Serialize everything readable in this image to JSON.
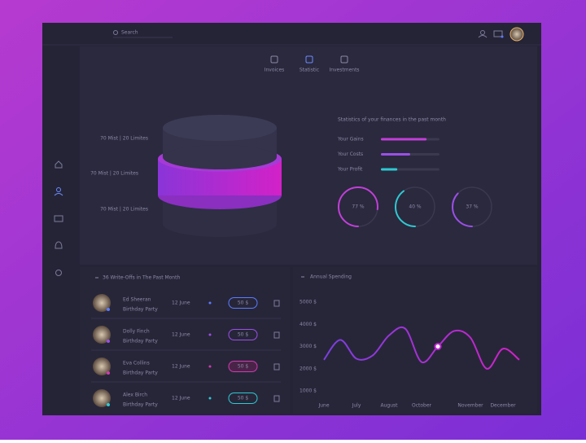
{
  "search": "Search",
  "tabs": [
    "Invoices",
    "Statistic",
    "Investments"
  ],
  "active_tab": 1,
  "cylinder_labels": [
    "70 Mist | 20 Limites",
    "70 Mist | 20 Limites",
    "70 Mist | 20 Limites"
  ],
  "active_label": 1,
  "stats": {
    "title": "Statistics of your finances in the past month",
    "bars": [
      {
        "label": "Your Gains",
        "value": 78,
        "color": "#c23fd8"
      },
      {
        "label": "Your Costs",
        "value": 50,
        "color": "#9b4fe6"
      },
      {
        "label": "Your Profit",
        "value": 28,
        "color": "#2fc9d2"
      }
    ],
    "rings": [
      {
        "value": 77,
        "label": "77 %",
        "color": "#c23fd8"
      },
      {
        "value": 40,
        "label": "40 %",
        "color": "#2fc9d2"
      },
      {
        "value": 37,
        "label": "37 %",
        "color": "#9b4fe6"
      }
    ]
  },
  "writeoffs": {
    "title": "36 Write-Offs in The Past Month",
    "rows": [
      {
        "name": "Ed Sheeran",
        "note": "Birthday Party",
        "date": "12 June",
        "amount": "50 $",
        "color": "#5b7cff"
      },
      {
        "name": "Dolly Finch",
        "note": "Birthday Party",
        "date": "12 June",
        "amount": "50 $",
        "color": "#9b4fe6"
      },
      {
        "name": "Eva Collins",
        "note": "Birthday Party",
        "date": "12 June",
        "amount": "50 $",
        "color": "#d03ab0"
      },
      {
        "name": "Alex Birch",
        "note": "Birthday Party",
        "date": "12 June",
        "amount": "50 $",
        "color": "#2fc9d2"
      }
    ]
  },
  "chart_data": {
    "type": "line",
    "title": "Annual Spending",
    "categories": [
      "June",
      null,
      "July",
      null,
      "August",
      null,
      "October",
      null,
      null,
      "November",
      null,
      "December",
      null
    ],
    "values": [
      2400,
      3300,
      2450,
      2600,
      3500,
      3800,
      2300,
      3000,
      3700,
      3400,
      2000,
      2900,
      2400
    ],
    "ylim": [
      1000,
      5000
    ],
    "yticks": [
      {
        "value": 5000,
        "label": "5000 $"
      },
      {
        "value": 4000,
        "label": "4000 $"
      },
      {
        "value": 3000,
        "label": "3000 $"
      },
      {
        "value": 2000,
        "label": "2000 $"
      },
      {
        "value": 1000,
        "label": "1000 $"
      }
    ],
    "highlight": 7,
    "color": "#c026d3"
  }
}
